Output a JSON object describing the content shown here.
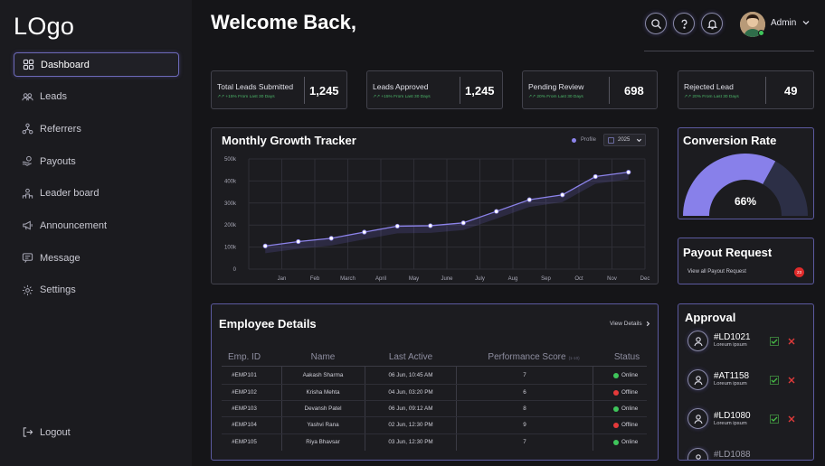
{
  "sidebar": {
    "logo": "LOgo",
    "items": [
      {
        "label": "Dashboard",
        "icon": "grid-icon"
      },
      {
        "label": "Leads",
        "icon": "users-icon"
      },
      {
        "label": "Referrers",
        "icon": "network-icon"
      },
      {
        "label": "Payouts",
        "icon": "payout-icon"
      },
      {
        "label": "Leader board",
        "icon": "leaderboard-icon"
      },
      {
        "label": "Announcement",
        "icon": "megaphone-icon"
      },
      {
        "label": "Message",
        "icon": "message-icon"
      },
      {
        "label": "Settings",
        "icon": "gear-icon"
      }
    ],
    "logout": "Logout"
  },
  "header": {
    "title": "Welcome Back,",
    "user": "Admin"
  },
  "stats": [
    {
      "label": "Total Leads Submitted",
      "sub": "↗↗ +15% From Last 30 Days",
      "value": "1,245"
    },
    {
      "label": "Leads Approved",
      "sub": "↗↗ +15% From Last 30 Days",
      "value": "1,245"
    },
    {
      "label": "Pending Review",
      "sub": "↗↗ 20% From Last 30 Days",
      "value": "698"
    },
    {
      "label": "Rejected Lead",
      "sub": "↗↗ 20% From Last 30 Days",
      "value": "49"
    }
  ],
  "chart": {
    "title": "Monthly Growth Tracker",
    "legend": "Profile",
    "year": "2025"
  },
  "chart_data": {
    "type": "line",
    "title": "Monthly Growth Tracker",
    "categories": [
      "Jan",
      "Feb",
      "March",
      "April",
      "May",
      "June",
      "July",
      "Aug",
      "Sep",
      "Oct",
      "Nov",
      "Dec"
    ],
    "y_ticks": [
      "0",
      "100k",
      "200k",
      "300k",
      "400k",
      "500k"
    ],
    "series": [
      {
        "name": "Profile",
        "values": [
          105000,
          125000,
          140000,
          168000,
          195000,
          197000,
          210000,
          262000,
          315000,
          337000,
          420000,
          440000
        ]
      }
    ],
    "ylim": [
      0,
      500000
    ],
    "grid": true,
    "legend_position": "top-right",
    "color": "#8c83ea"
  },
  "conversion": {
    "title": "Conversion Rate",
    "value": "66%",
    "fraction": 0.66,
    "color_fill": "#8880ea",
    "color_track": "#2c2f46"
  },
  "payout": {
    "title": "Payout Request",
    "link": "View all Payout Request",
    "badge": "23"
  },
  "employees": {
    "title": "Employee Details",
    "view_details": "View Details",
    "columns": [
      "Emp. ID",
      "Name",
      "Last Active",
      "Performance Score",
      "Status"
    ],
    "score_note": "(1-10)",
    "rows": [
      {
        "id": "#EMP101",
        "name": "Aakash Sharma",
        "last": "06 Jun, 10:45 AM",
        "score": "7",
        "status": "Online",
        "online": true
      },
      {
        "id": "#EMP102",
        "name": "Krisha Mehta",
        "last": "04 Jun, 03:20 PM",
        "score": "6",
        "status": "Offline",
        "online": false
      },
      {
        "id": "#EMP103",
        "name": "Devansh Patel",
        "last": "06 Jun, 09:12 AM",
        "score": "8",
        "status": "Online",
        "online": true
      },
      {
        "id": "#EMP104",
        "name": "Yashvi Rana",
        "last": "02 Jun, 12:30 PM",
        "score": "9",
        "status": "Offline",
        "online": false
      },
      {
        "id": "#EMP105",
        "name": "Riya Bhavsar",
        "last": "03 Jun, 12:30 PM",
        "score": "7",
        "status": "Online",
        "online": true
      }
    ]
  },
  "approval": {
    "title": "Approval",
    "items": [
      {
        "id": "#LD1021",
        "sub": "Loreum ipsum"
      },
      {
        "id": "#AT1158",
        "sub": "Loreum ipsum"
      },
      {
        "id": "#LD1080",
        "sub": "Loreum ipsum"
      },
      {
        "id": "#LD1088",
        "sub": ""
      }
    ]
  }
}
